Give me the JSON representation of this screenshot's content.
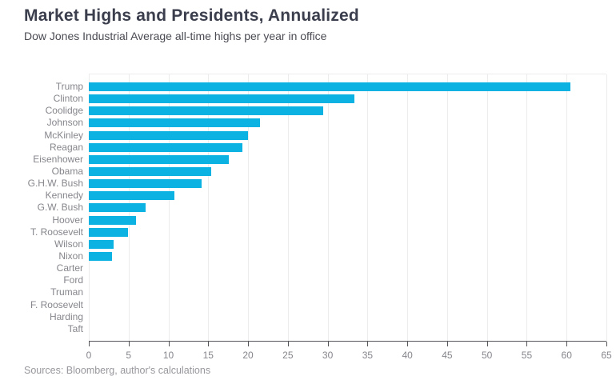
{
  "header": {
    "title": "Market Highs and Presidents, Annualized",
    "subtitle": "Dow Jones Industrial Average all-time highs per year in office"
  },
  "footer": {
    "source": "Sources: Bloomberg, author's calculations"
  },
  "chart_data": {
    "type": "bar",
    "orientation": "horizontal",
    "title": "Market Highs and Presidents, Annualized",
    "subtitle": "Dow Jones Industrial Average all-time highs per year in office",
    "xlabel": "",
    "ylabel": "",
    "xlim": [
      0,
      65
    ],
    "xticks": [
      0,
      5,
      10,
      15,
      20,
      25,
      30,
      35,
      40,
      45,
      50,
      55,
      60,
      65
    ],
    "grid": true,
    "legend": false,
    "bar_color": "#0cb3e2",
    "categories": [
      "Trump",
      "Clinton",
      "Coolidge",
      "Johnson",
      "McKinley",
      "Reagan",
      "Eisenhower",
      "Obama",
      "G.H.W. Bush",
      "Kennedy",
      "G.W. Bush",
      "Hoover",
      "T. Roosevelt",
      "Wilson",
      "Nixon",
      "Carter",
      "Ford",
      "Truman",
      "F. Roosevelt",
      "Harding",
      "Taft"
    ],
    "values": [
      60.5,
      33.4,
      29.4,
      21.5,
      20.0,
      19.3,
      17.6,
      15.4,
      14.2,
      10.7,
      7.1,
      5.9,
      4.9,
      3.1,
      2.9,
      0,
      0,
      0,
      0,
      0,
      0
    ]
  }
}
